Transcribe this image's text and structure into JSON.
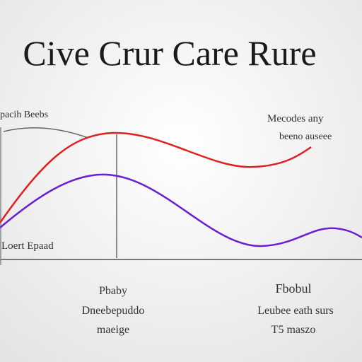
{
  "title": "Cive Crur Care Rure",
  "labels": {
    "top_left": "pacih Beebs",
    "top_right_1": "Mecodes any",
    "top_right_2": "beeno auseee",
    "bottom_left": "Loert Epaad",
    "below_left_1": "Pbaby",
    "below_left_2": "Dneebepuddo",
    "below_left_3": "maeige",
    "below_right_1": "Fbobul",
    "below_right_2": "Leubee eath surs",
    "below_right_3": "T5 maszo"
  }
}
